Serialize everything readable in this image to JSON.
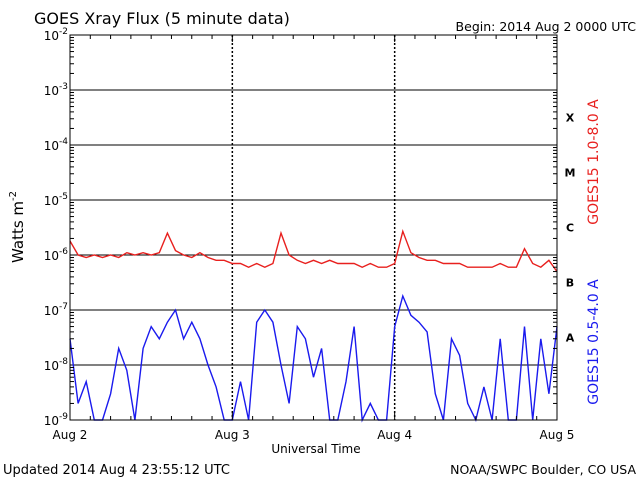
{
  "header": {
    "title": "GOES Xray Flux (5 minute data)",
    "begin": "Begin:  2014 Aug 2 0000 UTC"
  },
  "footer": {
    "updated": "Updated 2014 Aug  4 23:55:12 UTC",
    "credit": "NOAA/SWPC Boulder, CO USA"
  },
  "chart_data": {
    "type": "line",
    "title": "GOES Xray Flux (5 minute data)",
    "xlabel": "Universal Time",
    "ylabel_base": "Watts m",
    "ylabel_exp": "-2",
    "yscale": "log",
    "ylim": [
      1e-09,
      0.01
    ],
    "xlim_days": [
      0,
      3
    ],
    "x_ticks": [
      {
        "day": 0,
        "label": "Aug 2"
      },
      {
        "day": 1,
        "label": "Aug 3"
      },
      {
        "day": 2,
        "label": "Aug 4"
      },
      {
        "day": 3,
        "label": "Aug 5"
      }
    ],
    "y_ticks": [
      {
        "exp": -2,
        "base": "10",
        "sup": "-2"
      },
      {
        "exp": -3,
        "base": "10",
        "sup": "-3"
      },
      {
        "exp": -4,
        "base": "10",
        "sup": "-4"
      },
      {
        "exp": -5,
        "base": "10",
        "sup": "-5"
      },
      {
        "exp": -6,
        "base": "10",
        "sup": "-6"
      },
      {
        "exp": -7,
        "base": "10",
        "sup": "-7"
      },
      {
        "exp": -8,
        "base": "10",
        "sup": "-8"
      },
      {
        "exp": -9,
        "base": "10",
        "sup": "-9"
      }
    ],
    "flare_classes": [
      {
        "label": "X",
        "exp": -3.5
      },
      {
        "label": "M",
        "exp": -4.5
      },
      {
        "label": "C",
        "exp": -5.5
      },
      {
        "label": "B",
        "exp": -6.5
      },
      {
        "label": "A",
        "exp": -7.5
      }
    ],
    "grid": true,
    "series": [
      {
        "name": "GOES15 1.0-8.0 A",
        "color": "#e8201e",
        "x": [
          0,
          0.05,
          0.1,
          0.15,
          0.2,
          0.25,
          0.3,
          0.35,
          0.4,
          0.45,
          0.5,
          0.55,
          0.6,
          0.65,
          0.7,
          0.75,
          0.8,
          0.85,
          0.9,
          0.95,
          1.0,
          1.05,
          1.1,
          1.15,
          1.2,
          1.25,
          1.3,
          1.35,
          1.4,
          1.45,
          1.5,
          1.55,
          1.6,
          1.65,
          1.7,
          1.75,
          1.8,
          1.85,
          1.9,
          1.95,
          2.0,
          2.05,
          2.1,
          2.15,
          2.2,
          2.25,
          2.3,
          2.35,
          2.4,
          2.45,
          2.5,
          2.55,
          2.6,
          2.65,
          2.7,
          2.75,
          2.8,
          2.85,
          2.9,
          2.95,
          3.0
        ],
        "y": [
          1.8e-06,
          1e-06,
          9e-07,
          1e-06,
          9e-07,
          1e-06,
          9e-07,
          1.1e-06,
          1e-06,
          1.1e-06,
          1e-06,
          1.1e-06,
          2.5e-06,
          1.2e-06,
          1e-06,
          9e-07,
          1.1e-06,
          9e-07,
          8e-07,
          8e-07,
          7e-07,
          7e-07,
          6e-07,
          7e-07,
          6e-07,
          7e-07,
          2.5e-06,
          1e-06,
          8e-07,
          7e-07,
          8e-07,
          7e-07,
          8e-07,
          7e-07,
          7e-07,
          7e-07,
          6e-07,
          7e-07,
          6e-07,
          6e-07,
          7e-07,
          2.7e-06,
          1.1e-06,
          9e-07,
          8e-07,
          8e-07,
          7e-07,
          7e-07,
          7e-07,
          6e-07,
          6e-07,
          6e-07,
          6e-07,
          7e-07,
          6e-07,
          6e-07,
          1.3e-06,
          7e-07,
          6e-07,
          8e-07,
          5e-07
        ]
      },
      {
        "name": "GOES15 0.5-4.0 A",
        "color": "#1a1aee",
        "x": [
          0,
          0.05,
          0.1,
          0.15,
          0.2,
          0.25,
          0.3,
          0.35,
          0.4,
          0.45,
          0.5,
          0.55,
          0.6,
          0.65,
          0.7,
          0.75,
          0.8,
          0.85,
          0.9,
          0.95,
          1.0,
          1.05,
          1.1,
          1.15,
          1.2,
          1.25,
          1.3,
          1.35,
          1.4,
          1.45,
          1.5,
          1.55,
          1.6,
          1.65,
          1.7,
          1.75,
          1.8,
          1.85,
          1.9,
          1.95,
          2.0,
          2.05,
          2.1,
          2.15,
          2.2,
          2.25,
          2.3,
          2.35,
          2.4,
          2.45,
          2.5,
          2.55,
          2.6,
          2.65,
          2.7,
          2.75,
          2.8,
          2.85,
          2.9,
          2.95,
          3.0
        ],
        "y": [
          3e-08,
          2e-09,
          5e-09,
          1e-09,
          1e-09,
          3e-09,
          2e-08,
          8e-09,
          1e-09,
          2e-08,
          5e-08,
          3e-08,
          6e-08,
          1e-07,
          3e-08,
          6e-08,
          3e-08,
          1e-08,
          4e-09,
          1e-09,
          1e-09,
          5e-09,
          1e-09,
          6e-08,
          1e-07,
          6e-08,
          1e-08,
          2e-09,
          5e-08,
          3e-08,
          6e-09,
          2e-08,
          1e-09,
          1e-09,
          5e-09,
          5e-08,
          1e-09,
          2e-09,
          1e-09,
          1e-09,
          5e-08,
          1.8e-07,
          8e-08,
          6e-08,
          4e-08,
          3e-09,
          1e-09,
          3e-08,
          1.5e-08,
          2e-09,
          1e-09,
          4e-09,
          1e-09,
          3e-08,
          1e-09,
          1e-09,
          5e-08,
          1e-09,
          3e-08,
          3e-09,
          5e-08
        ]
      }
    ]
  }
}
